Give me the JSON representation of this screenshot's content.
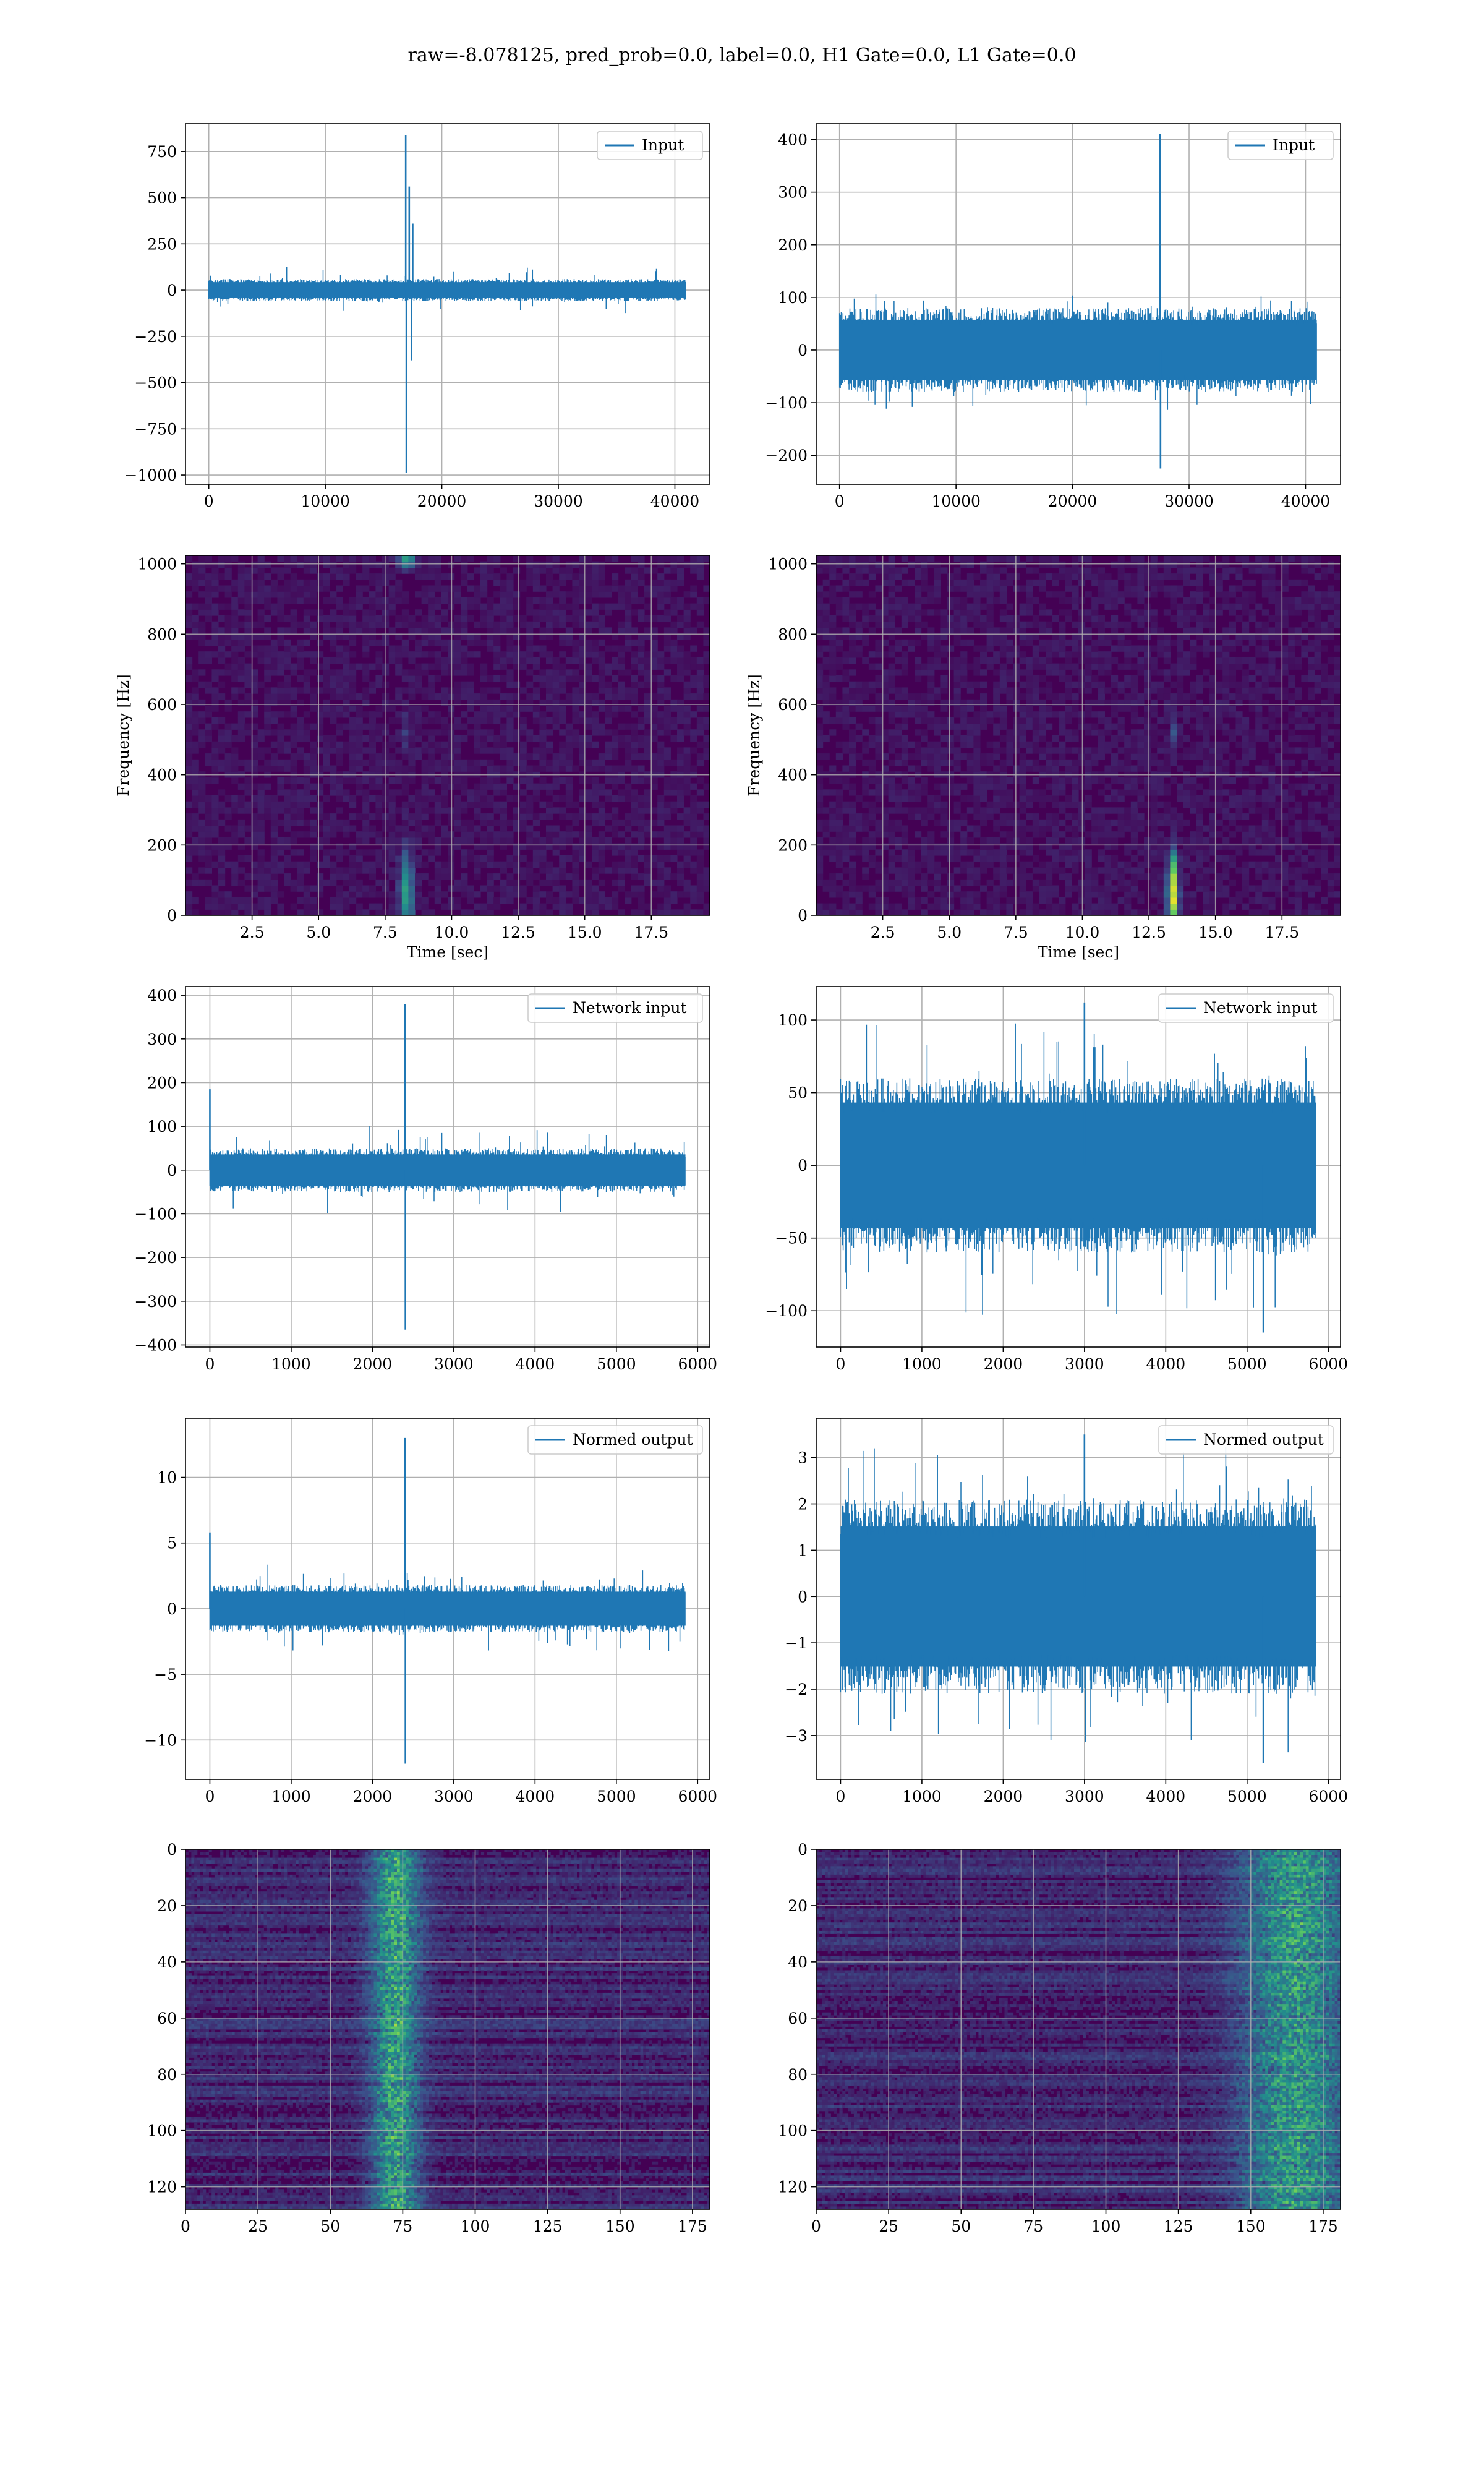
{
  "title": "raw=-8.078125, pred_prob=0.0, label=0.0, H1 Gate=0.0, L1 Gate=0.0",
  "colors": {
    "line": "#1f77b4",
    "grid": "#b0b0b0",
    "viridis_dark": "#440154",
    "viridis_mid": "#21918c",
    "viridis_bright": "#fde725"
  },
  "chart_data": [
    {
      "id": "h1-input",
      "type": "line",
      "legend": "Input",
      "legend_loc": "top-right",
      "grid": true,
      "xlim": [
        -2000,
        43000
      ],
      "ylim": [
        -1050,
        900
      ],
      "xticks": [
        0,
        10000,
        20000,
        30000,
        40000
      ],
      "xticklabels": [
        "0",
        "10000",
        "20000",
        "30000",
        "40000"
      ],
      "yticks": [
        -1000,
        -750,
        -500,
        -250,
        0,
        250,
        500,
        750
      ],
      "yticklabels": [
        "−1000",
        "−750",
        "−500",
        "−250",
        "0",
        "250",
        "500",
        "750"
      ],
      "x_range": [
        0,
        40960
      ],
      "noise_amp": 60,
      "noise_peak": 130,
      "spikes": [
        {
          "x": 16900,
          "y": 840
        },
        {
          "x": 16950,
          "y": -990
        },
        {
          "x": 17200,
          "y": 560
        },
        {
          "x": 17400,
          "y": -380
        },
        {
          "x": 17500,
          "y": 360
        }
      ],
      "xlabel": "",
      "ylabel": ""
    },
    {
      "id": "l1-input",
      "type": "line",
      "legend": "Input",
      "legend_loc": "top-right",
      "grid": true,
      "xlim": [
        -2000,
        43000
      ],
      "ylim": [
        -255,
        430
      ],
      "xticks": [
        0,
        10000,
        20000,
        30000,
        40000
      ],
      "xticklabels": [
        "0",
        "10000",
        "20000",
        "30000",
        "40000"
      ],
      "yticks": [
        -200,
        -100,
        0,
        100,
        200,
        300,
        400
      ],
      "yticklabels": [
        "−200",
        "−100",
        "0",
        "100",
        "200",
        "300",
        "400"
      ],
      "x_range": [
        0,
        40960
      ],
      "noise_amp": 80,
      "noise_peak": 120,
      "spikes": [
        {
          "x": 27500,
          "y": 410
        },
        {
          "x": 27550,
          "y": -225
        }
      ],
      "xlabel": "",
      "ylabel": ""
    },
    {
      "id": "h1-spectrogram",
      "type": "heatmap",
      "grid": true,
      "xlim": [
        0,
        19.7
      ],
      "ylim": [
        0,
        1024
      ],
      "xticks": [
        2.5,
        5.0,
        7.5,
        10.0,
        12.5,
        15.0,
        17.5
      ],
      "xticklabels": [
        "2.5",
        "5.0",
        "7.5",
        "10.0",
        "12.5",
        "15.0",
        "17.5"
      ],
      "yticks": [
        0,
        200,
        400,
        600,
        800,
        1000
      ],
      "yticklabels": [
        "0",
        "200",
        "400",
        "600",
        "800",
        "1000"
      ],
      "xlabel": "Time [sec]",
      "ylabel": "Frequency [Hz]",
      "hotspots": [
        {
          "t": 8.3,
          "f": 60,
          "w": 0.25,
          "h": 120,
          "v": 0.5
        },
        {
          "t": 8.3,
          "f": 1010,
          "w": 0.3,
          "h": 20,
          "v": 0.55
        },
        {
          "t": 8.3,
          "f": 520,
          "w": 0.1,
          "h": 60,
          "v": 0.15
        }
      ]
    },
    {
      "id": "l1-spectrogram",
      "type": "heatmap",
      "grid": true,
      "xlim": [
        0,
        19.7
      ],
      "ylim": [
        0,
        1024
      ],
      "xticks": [
        2.5,
        5.0,
        7.5,
        10.0,
        12.5,
        15.0,
        17.5
      ],
      "xticklabels": [
        "2.5",
        "5.0",
        "7.5",
        "10.0",
        "12.5",
        "15.0",
        "17.5"
      ],
      "yticks": [
        0,
        200,
        400,
        600,
        800,
        1000
      ],
      "yticklabels": [
        "0",
        "200",
        "400",
        "600",
        "800",
        "1000"
      ],
      "xlabel": "Time [sec]",
      "ylabel": "Frequency [Hz]",
      "hotspots": [
        {
          "t": 13.4,
          "f": 50,
          "w": 0.2,
          "h": 90,
          "v": 0.85
        },
        {
          "t": 13.4,
          "f": 140,
          "w": 0.15,
          "h": 60,
          "v": 0.35
        },
        {
          "t": 13.4,
          "f": 520,
          "w": 0.1,
          "h": 40,
          "v": 0.2
        }
      ]
    },
    {
      "id": "h1-network-input",
      "type": "line",
      "legend": "Network input",
      "legend_loc": "top-right",
      "grid": true,
      "xlim": [
        -300,
        6150
      ],
      "ylim": [
        -405,
        420
      ],
      "xticks": [
        0,
        1000,
        2000,
        3000,
        4000,
        5000,
        6000
      ],
      "xticklabels": [
        "0",
        "1000",
        "2000",
        "3000",
        "4000",
        "5000",
        "6000"
      ],
      "yticks": [
        -400,
        -300,
        -200,
        -100,
        0,
        100,
        200,
        300,
        400
      ],
      "yticklabels": [
        "−400",
        "−300",
        "−200",
        "−100",
        "0",
        "100",
        "200",
        "300",
        "400"
      ],
      "x_range": [
        0,
        5850
      ],
      "noise_amp": 50,
      "noise_peak": 110,
      "spikes": [
        {
          "x": 0,
          "y": 185
        },
        {
          "x": 2400,
          "y": 380
        },
        {
          "x": 2405,
          "y": -365
        }
      ],
      "xlabel": "",
      "ylabel": ""
    },
    {
      "id": "l1-network-input",
      "type": "line",
      "legend": "Network input",
      "legend_loc": "top-right",
      "grid": true,
      "xlim": [
        -300,
        6150
      ],
      "ylim": [
        -125,
        123
      ],
      "xticks": [
        0,
        1000,
        2000,
        3000,
        4000,
        5000,
        6000
      ],
      "xticklabels": [
        "0",
        "1000",
        "2000",
        "3000",
        "4000",
        "5000",
        "6000"
      ],
      "yticks": [
        -100,
        -50,
        0,
        50,
        100
      ],
      "yticklabels": [
        "−100",
        "−50",
        "0",
        "50",
        "100"
      ],
      "x_range": [
        0,
        5850
      ],
      "noise_amp": 60,
      "noise_peak": 110,
      "spikes": [
        {
          "x": 3000,
          "y": 112
        },
        {
          "x": 5200,
          "y": -115
        }
      ],
      "xlabel": "",
      "ylabel": ""
    },
    {
      "id": "h1-normed-output",
      "type": "line",
      "legend": "Normed output",
      "legend_loc": "top-right",
      "grid": true,
      "xlim": [
        -300,
        6150
      ],
      "ylim": [
        -13,
        14.5
      ],
      "xticks": [
        0,
        1000,
        2000,
        3000,
        4000,
        5000,
        6000
      ],
      "xticklabels": [
        "0",
        "1000",
        "2000",
        "3000",
        "4000",
        "5000",
        "6000"
      ],
      "yticks": [
        -10,
        -5,
        0,
        5,
        10
      ],
      "yticklabels": [
        "−10",
        "−5",
        "0",
        "5",
        "10"
      ],
      "x_range": [
        0,
        5850
      ],
      "noise_amp": 1.8,
      "noise_peak": 3.5,
      "spikes": [
        {
          "x": 0,
          "y": 5.8
        },
        {
          "x": 2400,
          "y": 13
        },
        {
          "x": 2405,
          "y": -11.8
        }
      ],
      "xlabel": "",
      "ylabel": ""
    },
    {
      "id": "l1-normed-output",
      "type": "line",
      "legend": "Normed output",
      "legend_loc": "top-right",
      "grid": true,
      "xlim": [
        -300,
        6150
      ],
      "ylim": [
        -3.95,
        3.85
      ],
      "xticks": [
        0,
        1000,
        2000,
        3000,
        4000,
        5000,
        6000
      ],
      "xticklabels": [
        "0",
        "1000",
        "2000",
        "3000",
        "4000",
        "5000",
        "6000"
      ],
      "yticks": [
        -3,
        -2,
        -1,
        0,
        1,
        2,
        3
      ],
      "yticklabels": [
        "−3",
        "−2",
        "−1",
        "0",
        "1",
        "2",
        "3"
      ],
      "x_range": [
        0,
        5850
      ],
      "noise_amp": 2.1,
      "noise_peak": 3.5,
      "spikes": [
        {
          "x": 3000,
          "y": 3.5
        },
        {
          "x": 5200,
          "y": -3.6
        }
      ],
      "xlabel": "",
      "ylabel": ""
    },
    {
      "id": "h1-feature-map",
      "type": "heatmap",
      "grid": true,
      "xlim": [
        0,
        181
      ],
      "ylim": [
        128,
        0
      ],
      "xticks": [
        0,
        25,
        50,
        75,
        100,
        125,
        150,
        175
      ],
      "xticklabels": [
        "0",
        "25",
        "50",
        "75",
        "100",
        "125",
        "150",
        "175"
      ],
      "yticks": [
        0,
        20,
        40,
        60,
        80,
        100,
        120
      ],
      "yticklabels": [
        "0",
        "20",
        "40",
        "60",
        "80",
        "100",
        "120"
      ],
      "xlabel": "",
      "ylabel": "",
      "bands": [
        {
          "center": 72,
          "width": 8,
          "v": 0.55
        }
      ]
    },
    {
      "id": "l1-feature-map",
      "type": "heatmap",
      "grid": true,
      "xlim": [
        0,
        181
      ],
      "ylim": [
        128,
        0
      ],
      "xticks": [
        0,
        25,
        50,
        75,
        100,
        125,
        150,
        175
      ],
      "xticklabels": [
        "0",
        "25",
        "50",
        "75",
        "100",
        "125",
        "150",
        "175"
      ],
      "yticks": [
        0,
        20,
        40,
        60,
        80,
        100,
        120
      ],
      "yticklabels": [
        "0",
        "20",
        "40",
        "60",
        "80",
        "100",
        "120"
      ],
      "xlabel": "",
      "ylabel": "",
      "bands": [
        {
          "center": 165,
          "width": 18,
          "v": 0.5
        }
      ]
    }
  ]
}
